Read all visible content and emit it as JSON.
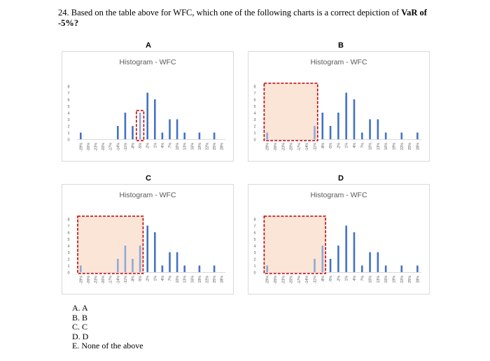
{
  "question": {
    "number": "24.",
    "text_before": "Based on the table above for WFC, which one of the following charts is a correct depiction of ",
    "text_bold": "VaR of -5%?",
    "text_after": ""
  },
  "chart_data": [
    {
      "panel": "A",
      "type": "bar",
      "title": "Histogram - WFC",
      "categories": [
        "-29%",
        "-26%",
        "-23%",
        "-20%",
        "-17%",
        "-14%",
        "-11%",
        "-8%",
        "-5%",
        "-2%",
        "1%",
        "4%",
        "7%",
        "10%",
        "13%",
        "16%",
        "19%",
        "22%",
        "25%",
        "28%"
      ],
      "values": [
        1,
        0,
        0,
        0,
        0,
        2,
        4,
        2,
        4,
        7,
        6,
        1,
        3,
        3,
        1,
        0,
        1,
        0,
        1,
        0
      ],
      "ylim": [
        0,
        8
      ],
      "yticks": [
        0,
        1,
        2,
        3,
        4,
        5,
        6,
        7,
        8
      ],
      "bar_color": "#4472c4",
      "highlight_color": "#c00000",
      "highlight": "dashed box around the -5% bar"
    },
    {
      "panel": "B",
      "type": "bar",
      "title": "Histogram - WFC",
      "categories": [
        "-29%",
        "-26%",
        "-23%",
        "-20%",
        "-17%",
        "-14%",
        "-11%",
        "-8%",
        "-5%",
        "-2%",
        "1%",
        "4%",
        "7%",
        "10%",
        "13%",
        "16%",
        "19%",
        "22%",
        "25%",
        "28%"
      ],
      "values": [
        1,
        0,
        0,
        0,
        0,
        0,
        2,
        4,
        2,
        4,
        7,
        6,
        1,
        3,
        3,
        1,
        0,
        1,
        0,
        1
      ],
      "ylim": [
        0,
        8
      ],
      "yticks": [
        0,
        1,
        2,
        3,
        4,
        5,
        6,
        7,
        8
      ],
      "bar_color": "#4472c4",
      "highlight_color": "#c00000",
      "highlight": "shaded dashed region from -29% through -11%"
    },
    {
      "panel": "C",
      "type": "bar",
      "title": "Histogram - WFC",
      "categories": [
        "-29%",
        "-26%",
        "-23%",
        "-20%",
        "-17%",
        "-14%",
        "-11%",
        "-8%",
        "-5%",
        "-2%",
        "1%",
        "4%",
        "7%",
        "10%",
        "13%",
        "16%",
        "19%",
        "22%",
        "25%",
        "28%"
      ],
      "values": [
        1,
        0,
        0,
        0,
        0,
        2,
        4,
        2,
        4,
        7,
        6,
        1,
        3,
        3,
        1,
        0,
        1,
        0,
        1,
        0
      ],
      "ylim": [
        0,
        8
      ],
      "yticks": [
        0,
        1,
        2,
        3,
        4,
        5,
        6,
        7,
        8
      ],
      "bar_color": "#4472c4",
      "highlight_color": "#c00000",
      "highlight": "shaded dashed region from -29% through -5%"
    },
    {
      "panel": "D",
      "type": "bar",
      "title": "Histogram - WFC",
      "categories": [
        "-29%",
        "-26%",
        "-23%",
        "-20%",
        "-17%",
        "-14%",
        "-11%",
        "-8%",
        "-5%",
        "-2%",
        "1%",
        "4%",
        "7%",
        "10%",
        "13%",
        "16%",
        "19%",
        "22%",
        "25%",
        "28%"
      ],
      "values": [
        1,
        0,
        0,
        0,
        0,
        0,
        2,
        4,
        2,
        4,
        7,
        6,
        1,
        3,
        3,
        1,
        0,
        1,
        0,
        1
      ],
      "ylim": [
        0,
        8
      ],
      "yticks": [
        0,
        1,
        2,
        3,
        4,
        5,
        6,
        7,
        8
      ],
      "bar_color": "#4472c4",
      "highlight_color": "#c00000",
      "highlight": "shaded dashed region from -29% through -8%"
    }
  ],
  "options": [
    "A.  A",
    "B.  B",
    "C.  C",
    "D.  D",
    "E.  None of the above"
  ]
}
